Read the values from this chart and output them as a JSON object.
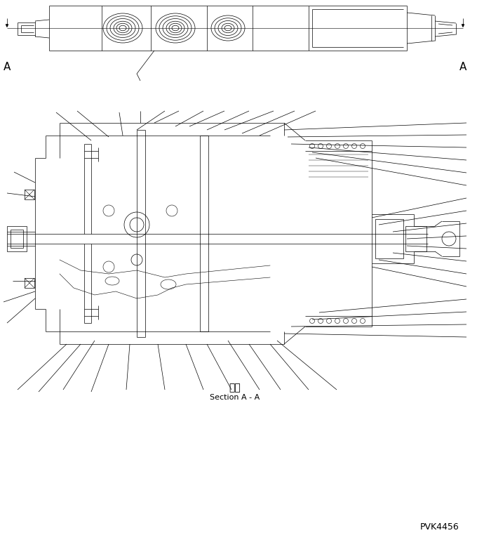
{
  "bg_color": "#ffffff",
  "line_color": "#000000",
  "title_japanese": "断面",
  "title_english": "Section A - A",
  "drawing_number": "PVK4456",
  "fig_width": 6.8,
  "fig_height": 7.69,
  "dpi": 100
}
